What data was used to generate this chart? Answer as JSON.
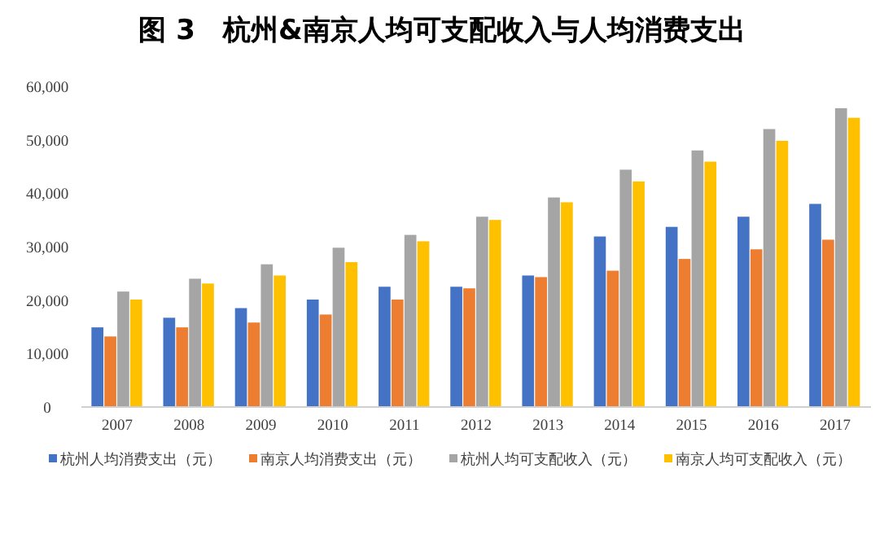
{
  "chart_data": {
    "type": "bar",
    "title": "图 3　杭州&南京人均可支配收入与人均消费支出",
    "categories": [
      "2007",
      "2008",
      "2009",
      "2010",
      "2011",
      "2012",
      "2013",
      "2014",
      "2015",
      "2016",
      "2017"
    ],
    "series": [
      {
        "name": "杭州人均消费支出（元）",
        "color": "#4472c4",
        "values": [
          14900,
          16700,
          18500,
          20100,
          22500,
          22500,
          24600,
          31900,
          33700,
          35600,
          38000
        ]
      },
      {
        "name": "南京人均消费支出（元）",
        "color": "#ed7d31",
        "values": [
          13200,
          14900,
          15800,
          17300,
          20100,
          22200,
          24300,
          25500,
          27700,
          29500,
          31300
        ]
      },
      {
        "name": "杭州人均可支配收入（元）",
        "color": "#a5a5a5",
        "values": [
          21600,
          24000,
          26700,
          29800,
          32200,
          35600,
          39200,
          44400,
          48000,
          52000,
          55900
        ]
      },
      {
        "name": "南京人均可支配收入（元）",
        "color": "#ffc000",
        "values": [
          20100,
          23100,
          24600,
          27100,
          31000,
          35000,
          38300,
          42200,
          45900,
          49800,
          54100
        ]
      }
    ],
    "ylim": [
      0,
      60000
    ],
    "yticks": [
      0,
      {
        "value": 10000,
        "label": "10,000"
      },
      {
        "value": 20000,
        "label": "20,000"
      },
      {
        "value": 30000,
        "label": "30,000"
      },
      {
        "value": 40000,
        "label": "40,000"
      },
      {
        "value": 50000,
        "label": "50,000"
      },
      {
        "value": 60000,
        "label": "60,000"
      }
    ],
    "grid": false,
    "legend": "bottom"
  }
}
